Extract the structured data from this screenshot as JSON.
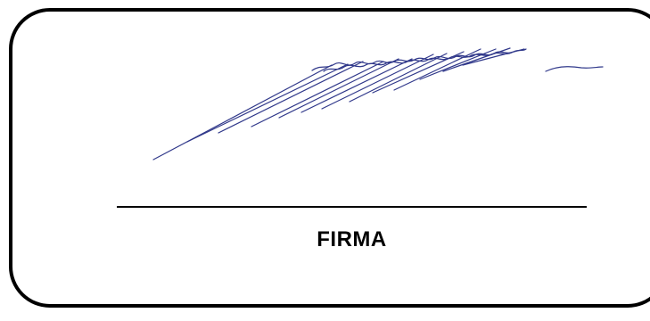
{
  "signature_box": {
    "label": "FIRMA",
    "ink_color": "#1a237e",
    "border_color": "#000000"
  }
}
